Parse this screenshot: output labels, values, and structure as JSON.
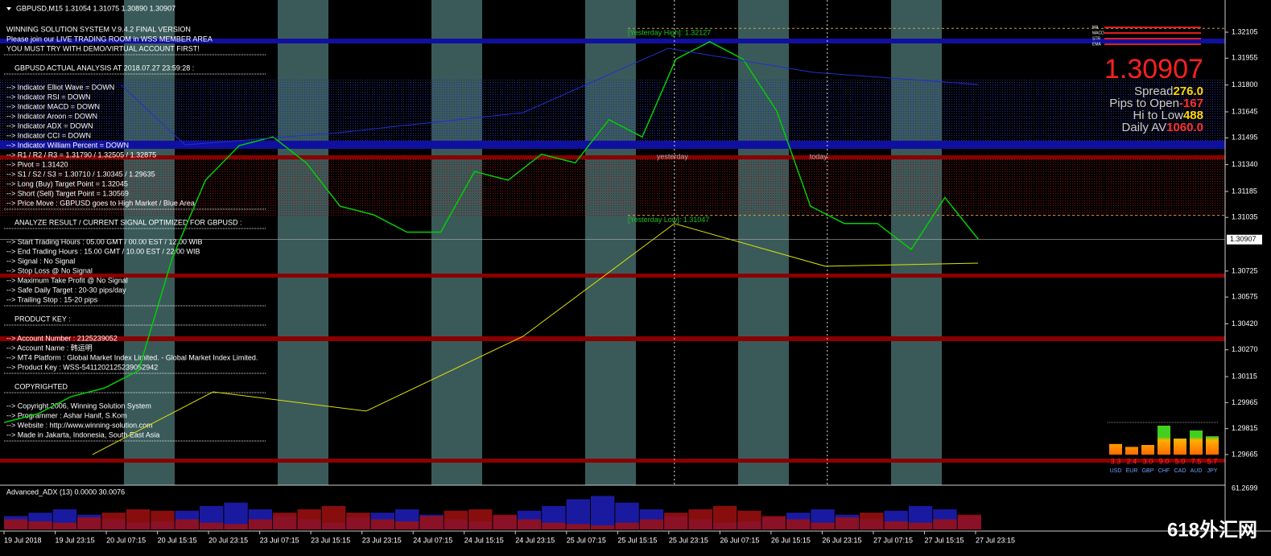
{
  "header": "GBPUSD,M15  1.31054 1.31075 1.30890 1.30907",
  "panel": {
    "blocks": [
      [
        "WINNING SOLUTION SYSTEM V.9.4.2 FINAL VERSION",
        "Please join our LIVE TRADING ROOM in WSS MEMBER AREA",
        "YOU MUST TRY WITH DEMO/VIRTUAL ACCOUNT FIRST!"
      ],
      [
        "GBPUSD ACTUAL ANALYSIS AT 2018.07.27 23:59:28 :"
      ],
      [
        "--> Indicator Elliot Wave = DOWN",
        "--> Indicator RSI = DOWN",
        "--> Indicator MACD = DOWN",
        "--> Indicator Aroon = DOWN",
        "--> Indicator ADX = DOWN",
        "--> Indicator CCI = DOWN",
        "--> Indicator William Percent = DOWN",
        "--> R1 / R2 / R3 = 1.31790 / 1.32505 / 1.32875",
        "--> Pivot = 1.31420",
        "--> S1 / S2 / S3 = 1.30710 / 1.30345 / 1.29635",
        "--> Long (Buy) Target Point = 1.32045",
        "--> Short (Sell) Target Point = 1.30569",
        "--> Price Move : GBPUSD goes to High Market / Blue Area"
      ],
      [
        "ANALYZE RESULT / CURRENT SIGNAL OPTIMIZED FOR GBPUSD :"
      ],
      [
        "--> Start Trading Hours : 05.00 GMT / 00.00 EST / 12.00 WIB",
        "--> End Trading Hours : 15.00 GMT / 10.00 EST / 22.00 WIB",
        "--> Signal :  No Signal",
        "--> Stop Loss @ No Signal",
        "--> Maximum Take Profit @ No Signal",
        "--> Safe Daily Target : 20-30 pips/day",
        "--> Trailing Stop : 15-20 pips"
      ],
      [
        "PRODUCT KEY :"
      ],
      [
        "--> Account Number : 2125239052",
        "--> Account Name : 韩运明",
        "--> MT4 Platform : Global Market Index Limited. - Global Market Index Limited.",
        "--> Product Key : WSS-5411202125239052942"
      ],
      [
        "COPYRIGHTED"
      ],
      [
        "--> Copyright 2006, Winning Solution System",
        "--> Programmer : Ashar Hanif, S.Kom",
        "--> Website : http://www.winning-solution.com",
        "--> Made in Jakarta, Indonesia, South East Asia"
      ]
    ]
  },
  "info": {
    "price": "1.30907",
    "stats": [
      {
        "label": "Spread",
        "value": "276.0",
        "color": "#ffd700"
      },
      {
        "label": "Pips to Open",
        "value": "-167",
        "color": "#ff3030"
      },
      {
        "label": "Hi to Low",
        "value": "488",
        "color": "#ffd700"
      },
      {
        "label": "Daily AV",
        "value": "1060.0",
        "color": "#ff3030"
      }
    ]
  },
  "mini_legend": [
    "MA",
    "MACD",
    "STR",
    "EMA"
  ],
  "chart_data": {
    "type": "line",
    "categories": [
      "19 Jul 2018",
      "19 Jul 23:15",
      "20 Jul 07:15",
      "20 Jul 15:15",
      "20 Jul 23:15",
      "23 Jul 07:15",
      "23 Jul 15:15",
      "23 Jul 23:15",
      "24 Jul 07:15",
      "24 Jul 15:15",
      "24 Jul 23:15",
      "25 Jul 07:15",
      "25 Jul 15:15",
      "25 Jul 23:15",
      "26 Jul 07:15",
      "26 Jul 15:15",
      "26 Jul 23:15",
      "27 Jul 07:15",
      "27 Jul 15:15",
      "27 Jul 23:15"
    ],
    "xlim": [
      -0.079,
      23.88
    ],
    "ylim": [
      1.29488,
      1.32291
    ],
    "yticks": [
      {
        "value": 1.32105,
        "label": "1.32105"
      },
      {
        "value": 1.31955,
        "label": "1.31955"
      },
      {
        "value": 1.318,
        "label": "1.31800"
      },
      {
        "value": 1.31645,
        "label": "1.31645"
      },
      {
        "value": 1.31495,
        "label": "1.31495"
      },
      {
        "value": 1.3134,
        "label": "1.31340"
      },
      {
        "value": 1.31185,
        "label": "1.31185"
      },
      {
        "value": 1.31035,
        "label": "1.31035"
      },
      {
        "value": 1.30725,
        "label": "1.30725"
      },
      {
        "value": 1.30575,
        "label": "1.30575"
      },
      {
        "value": 1.3042,
        "label": "1.30420"
      },
      {
        "value": 1.3027,
        "label": "1.30270"
      },
      {
        "value": 1.30115,
        "label": "1.30115"
      },
      {
        "value": 1.29965,
        "label": "1.29965"
      },
      {
        "value": 1.29815,
        "label": "1.29815"
      },
      {
        "value": 1.29665,
        "label": "1.29665"
      }
    ],
    "current_price": {
      "value": 1.30907,
      "label": "1.30907"
    },
    "yesterday_high": {
      "value": 1.32127,
      "label": "[Yesterday High]: 1.32127"
    },
    "yesterday_low": {
      "value": 1.31047,
      "label": "[Yesterday Low]: 1.31047"
    },
    "markers": [
      {
        "label": "yesterday",
        "x": 13.11
      },
      {
        "label": "today",
        "x": 16.1
      }
    ],
    "series": [
      {
        "color": "#00d000",
        "x": [
          0,
          0.66,
          1.31,
          1.97,
          2.63,
          3.29,
          3.94,
          4.6,
          5.26,
          5.91,
          6.57,
          7.23,
          7.88,
          8.54,
          9.2,
          9.86,
          10.51,
          11.17,
          11.83,
          12.48,
          13.14,
          13.8,
          14.45,
          15.11,
          15.77,
          16.43,
          17.08,
          17.74,
          18.4,
          19.05
        ],
        "values": [
          1.2985,
          1.299,
          1.3,
          1.3005,
          1.3015,
          1.308,
          1.3125,
          1.3145,
          1.315,
          1.3135,
          1.311,
          1.3105,
          1.3095,
          1.3095,
          1.313,
          1.3125,
          1.314,
          1.3135,
          1.316,
          1.315,
          1.3195,
          1.3205,
          1.3195,
          1.3165,
          1.311,
          1.31,
          1.31,
          1.3085,
          1.3115,
          1.3091
        ]
      },
      {
        "color": "#2030d0",
        "x": [
          2.28,
          3.54,
          6.53,
          10.15,
          12.99,
          15.82,
          19.05
        ],
        "values": [
          1.31803,
          1.31454,
          1.31524,
          1.3164,
          1.32012,
          1.31873,
          1.31803
        ]
      },
      {
        "color": "#e0e000",
        "x": [
          1.73,
          4.09,
          7.08,
          10.15,
          13.11,
          16.06,
          19.05
        ],
        "values": [
          1.29665,
          1.30027,
          1.29916,
          1.30348,
          1.30999,
          1.30753,
          1.30771
        ]
      }
    ]
  },
  "indicator": {
    "title": "Advanced_ADX (13) 0.0000 30.0076",
    "ylim": [
      0,
      61.2699
    ],
    "yticks": [
      61.2699
    ],
    "series": [
      {
        "color": "#1a1aa0",
        "values": [
          20,
          25,
          30,
          22,
          15,
          10,
          12,
          28,
          35,
          40,
          30,
          20,
          15,
          10,
          18,
          25,
          30,
          22,
          15,
          12,
          20,
          28,
          35,
          45,
          50,
          40,
          30,
          20,
          15,
          10,
          12,
          18,
          25,
          30,
          22,
          15,
          28,
          35,
          30,
          20
        ]
      },
      {
        "color": "#a01010",
        "values": [
          15,
          12,
          10,
          18,
          25,
          30,
          28,
          15,
          10,
          8,
          15,
          25,
          30,
          35,
          25,
          15,
          12,
          20,
          28,
          30,
          22,
          15,
          10,
          8,
          6,
          10,
          15,
          25,
          30,
          35,
          28,
          20,
          15,
          10,
          18,
          25,
          12,
          10,
          15,
          22
        ]
      }
    ]
  },
  "strength": {
    "categories": [
      "USD",
      "EUR",
      "GBP",
      "CHF",
      "CAD",
      "AUD",
      "JPY"
    ],
    "values": [
      3.3,
      2.4,
      3,
      9,
      5,
      7.5,
      5.7
    ],
    "value_labels": [
      "3.3",
      "2.4",
      "3.0",
      "9.0",
      "5.0",
      "7.5",
      "5.7"
    ],
    "ylim": [
      0,
      10
    ]
  },
  "watermark": "618外汇网"
}
